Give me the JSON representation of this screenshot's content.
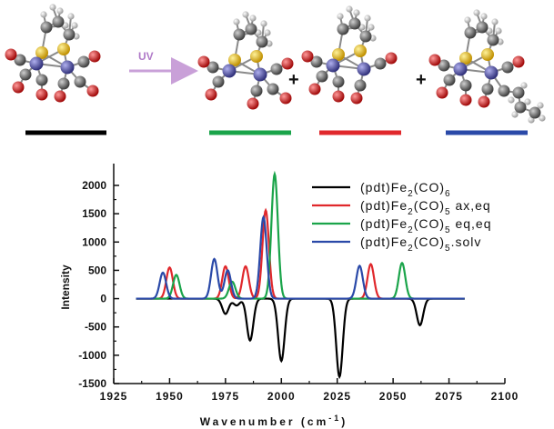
{
  "scheme": {
    "arrow_label": "UV",
    "arrow_color": "#c9a0d8",
    "plus_sign": "+",
    "underline_colors": [
      "#000000",
      "#1aa44a",
      "#e0282c",
      "#2a49a8"
    ],
    "molecule_colors": {
      "carbon": "#5a5a5a",
      "oxygen": "#d81818",
      "sulfur": "#e8c020",
      "iron": "#5a5ab0",
      "hydrogen": "#d8d8d8",
      "bond": "#8a8a8a"
    }
  },
  "chart_data": {
    "type": "line",
    "xlabel": "Wavenumber (cm",
    "xlabel_sup": "-1",
    "xlabel_close": ")",
    "ylabel": "Intensity",
    "xlim": [
      1925,
      2100
    ],
    "ylim": [
      -1500,
      2000
    ],
    "x_ticks": [
      "1925",
      "1950",
      "1975",
      "2000",
      "2025",
      "2050",
      "2075",
      "2100"
    ],
    "y_ticks": [
      "2000",
      "1500",
      "1000",
      "500",
      "0",
      "-500",
      "-1000",
      "-1500"
    ],
    "grid": false,
    "legend_placement": "top-right",
    "series": [
      {
        "name": "(pdt)Fe2(CO)6",
        "legend_parts": [
          "(pdt)Fe",
          "2",
          "(CO)",
          "6",
          ""
        ],
        "color": "#000000",
        "peaks": [
          [
            1975,
            -270
          ],
          [
            1980,
            -120
          ],
          [
            1986,
            -740
          ],
          [
            2000,
            -1100
          ],
          [
            2026,
            -1380
          ],
          [
            2062,
            -470
          ]
        ]
      },
      {
        "name": "(pdt)Fe2(CO)5 ax,eq",
        "legend_parts": [
          "(pdt)Fe",
          "2",
          "(CO)",
          "5",
          " ax,eq"
        ],
        "color": "#e0282c",
        "peaks": [
          [
            1950,
            550
          ],
          [
            1975,
            570
          ],
          [
            1984,
            570
          ],
          [
            1993,
            1560
          ],
          [
            2040,
            610
          ]
        ]
      },
      {
        "name": "(pdt)Fe2(CO)5 eq,eq",
        "legend_parts": [
          "(pdt)Fe",
          "2",
          "(CO)",
          "5",
          " eq,eq"
        ],
        "color": "#1aa44a",
        "peaks": [
          [
            1953,
            420
          ],
          [
            1978,
            300
          ],
          [
            1997,
            2200
          ],
          [
            2054,
            630
          ]
        ]
      },
      {
        "name": "(pdt)Fe2(CO)5.solv",
        "legend_parts": [
          "(pdt)Fe",
          "2",
          "(CO)",
          "5",
          ".solv"
        ],
        "color": "#2a49a8",
        "peaks": [
          [
            1947,
            460
          ],
          [
            1970,
            700
          ],
          [
            1976,
            500
          ],
          [
            1992,
            1440
          ],
          [
            2035,
            580
          ]
        ]
      }
    ]
  }
}
